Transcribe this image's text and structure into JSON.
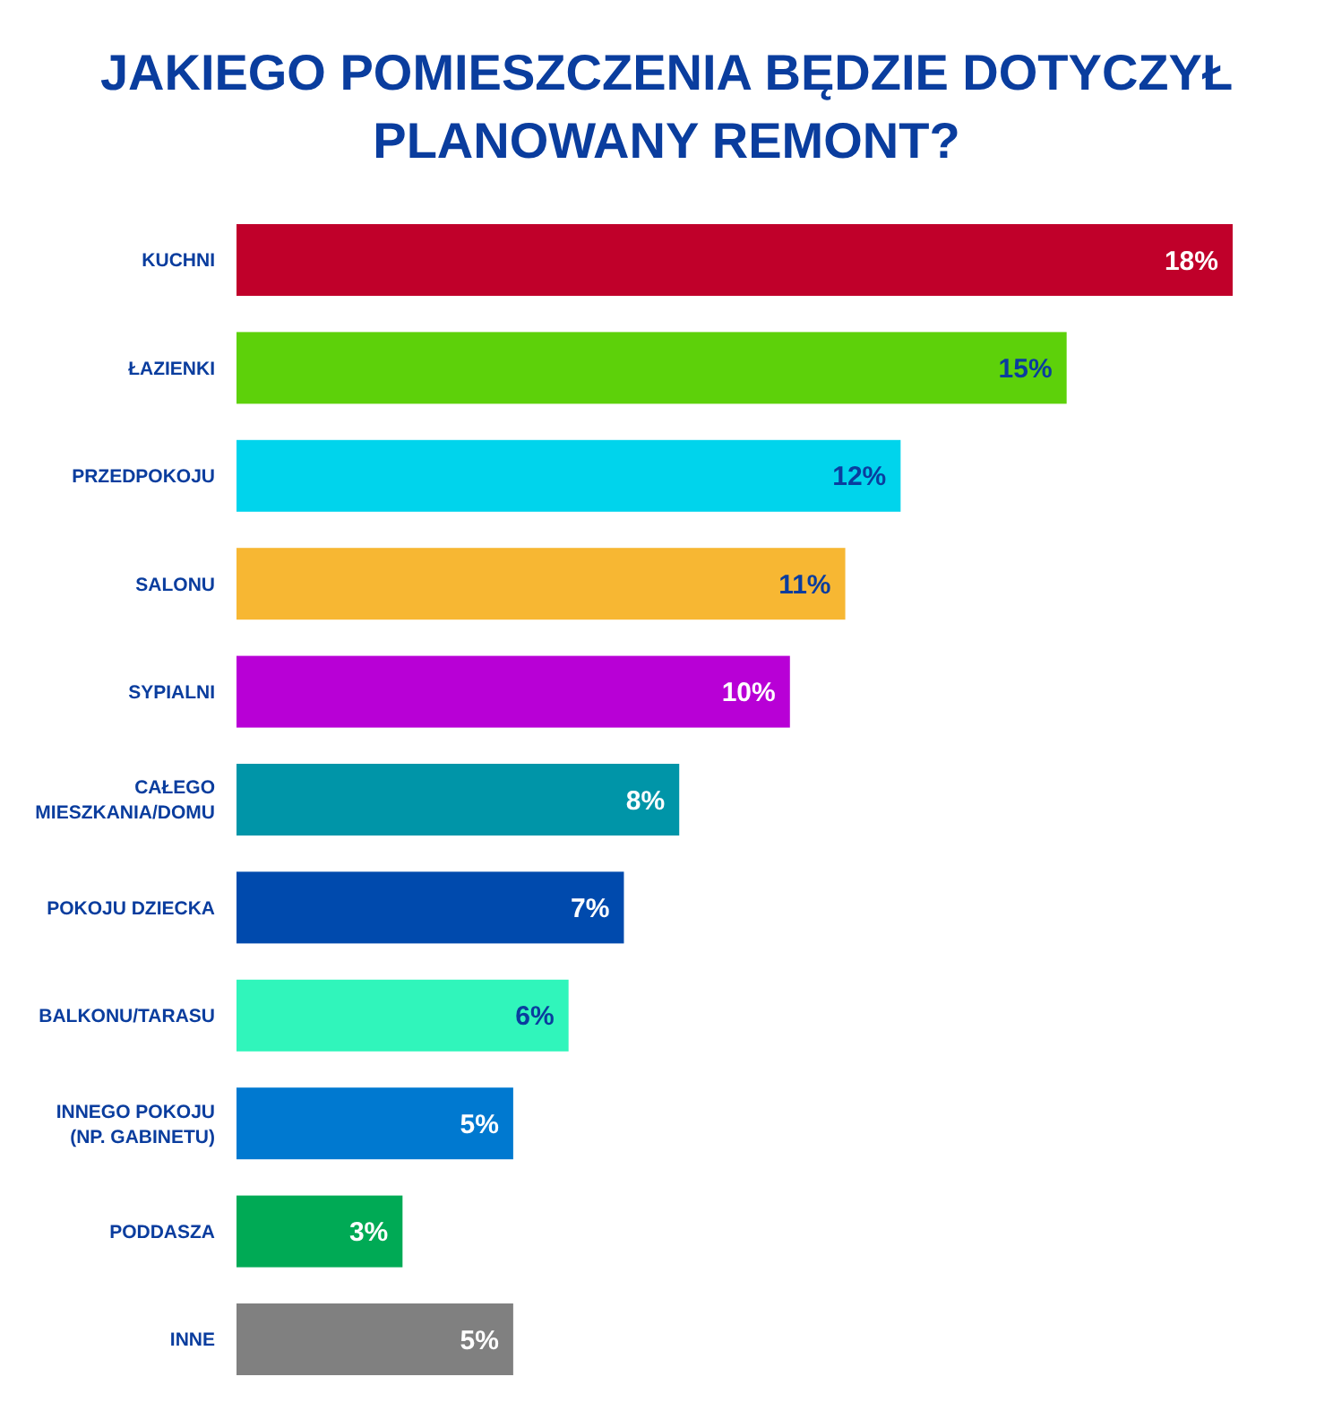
{
  "chart_data": {
    "type": "bar",
    "orientation": "horizontal",
    "title": "JAKIEGO POMIESZCZENIA BĘDZIE DOTYCZYŁ PLANOWANY REMONT?",
    "categories": [
      "KUCHNI",
      "ŁAZIENKI",
      "PRZEDPOKOJU",
      "SALONU",
      "SYPIALNI",
      "CAŁEGO MIESZKANIA/DOMU",
      "POKOJU DZIECKA",
      "BALKONU/TARASU",
      "INNEGO POKOJU (NP. GABINETU)",
      "PODDASZA",
      "INNE"
    ],
    "values": [
      18,
      15,
      12,
      11,
      10,
      8,
      7,
      6,
      5,
      3,
      5
    ],
    "value_labels": [
      "18%",
      "15%",
      "12%",
      "11%",
      "10%",
      "8%",
      "7%",
      "6%",
      "5%",
      "3%",
      "5%"
    ],
    "colors": [
      "#c0002a",
      "#5dd10a",
      "#00d4ec",
      "#f7b733",
      "#b800d6",
      "#0095a8",
      "#004aad",
      "#30f5bb",
      "#0079d0",
      "#00aa55",
      "#808080"
    ]
  }
}
